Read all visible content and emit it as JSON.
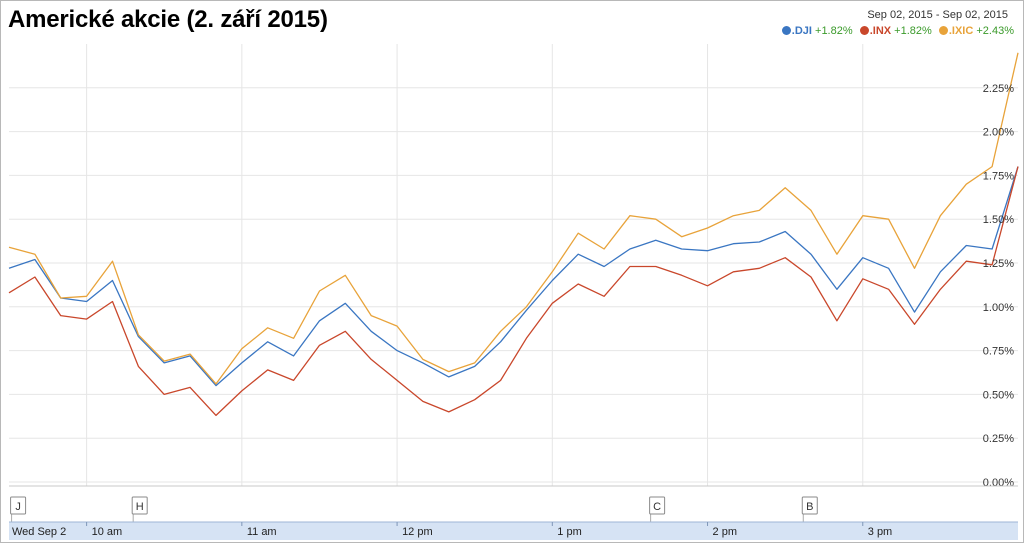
{
  "title": "Americké akcie (2. září 2015)",
  "date_range": "Sep 02, 2015  -  Sep 02, 2015",
  "legend": [
    {
      "name": ".DJI",
      "change": "+1.82%",
      "color": "#3a76c2"
    },
    {
      "name": ".INX",
      "change": "+1.82%",
      "color": "#c9472b"
    },
    {
      "name": ".IXIC",
      "change": "+2.43%",
      "color": "#e8a33a"
    }
  ],
  "flags": [
    "J",
    "H",
    "C",
    "B"
  ],
  "x_axis_labels": [
    "Wed Sep 2",
    "10 am",
    "11 am",
    "12 pm",
    "1 pm",
    "2 pm",
    "3 pm"
  ],
  "chart_data": {
    "type": "line",
    "title": "Americké akcie (2. září 2015)",
    "xlabel": "",
    "ylabel": "",
    "y_unit": "%",
    "ylim": [
      0,
      2.5
    ],
    "y_ticks": [
      0.0,
      0.25,
      0.5,
      0.75,
      1.0,
      1.25,
      1.5,
      1.75,
      2.0,
      2.25
    ],
    "y_tick_labels": [
      "0.00%",
      "0.25%",
      "0.50%",
      "0.75%",
      "1.00%",
      "1.25%",
      "1.50%",
      "1.75%",
      "2.00%",
      "2.25%"
    ],
    "x_ticks": [
      "9:30",
      "10:00",
      "11:00",
      "12:00",
      "13:00",
      "14:00",
      "15:00"
    ],
    "x_tick_labels": [
      "Wed Sep 2",
      "10 am",
      "11 am",
      "12 pm",
      "1 pm",
      "2 pm",
      "3 pm"
    ],
    "xlim": [
      "9:30",
      "16:00"
    ],
    "grid": true,
    "legend_position": "top-right",
    "flags": [
      {
        "label": "J",
        "time": "9:31"
      },
      {
        "label": "H",
        "time": "10:18"
      },
      {
        "label": "C",
        "time": "13:38"
      },
      {
        "label": "B",
        "time": "14:37"
      }
    ],
    "x": [
      "9:30",
      "9:40",
      "9:50",
      "10:00",
      "10:10",
      "10:20",
      "10:30",
      "10:40",
      "10:50",
      "11:00",
      "11:10",
      "11:20",
      "11:30",
      "11:40",
      "11:50",
      "12:00",
      "12:10",
      "12:20",
      "12:30",
      "12:40",
      "12:50",
      "13:00",
      "13:10",
      "13:20",
      "13:30",
      "13:40",
      "13:50",
      "14:00",
      "14:10",
      "14:20",
      "14:30",
      "14:40",
      "14:50",
      "15:00",
      "15:10",
      "15:20",
      "15:30",
      "15:40",
      "15:50",
      "16:00"
    ],
    "series": [
      {
        "name": ".DJI",
        "color": "#3a76c2",
        "values": [
          1.22,
          1.27,
          1.05,
          1.03,
          1.15,
          0.83,
          0.68,
          0.72,
          0.55,
          0.68,
          0.8,
          0.72,
          0.92,
          1.02,
          0.86,
          0.75,
          0.68,
          0.6,
          0.66,
          0.8,
          0.98,
          1.15,
          1.3,
          1.23,
          1.33,
          1.38,
          1.33,
          1.32,
          1.36,
          1.37,
          1.43,
          1.3,
          1.1,
          1.28,
          1.22,
          0.97,
          1.2,
          1.35,
          1.33,
          1.8
        ]
      },
      {
        "name": ".INX",
        "color": "#c9472b",
        "values": [
          1.08,
          1.17,
          0.95,
          0.93,
          1.03,
          0.66,
          0.5,
          0.54,
          0.38,
          0.52,
          0.64,
          0.58,
          0.78,
          0.86,
          0.7,
          0.58,
          0.46,
          0.4,
          0.47,
          0.58,
          0.82,
          1.02,
          1.13,
          1.06,
          1.23,
          1.23,
          1.18,
          1.12,
          1.2,
          1.22,
          1.28,
          1.17,
          0.92,
          1.16,
          1.1,
          0.9,
          1.1,
          1.26,
          1.24,
          1.8
        ]
      },
      {
        "name": ".IXIC",
        "color": "#e8a33a",
        "values": [
          1.34,
          1.3,
          1.05,
          1.06,
          1.26,
          0.84,
          0.69,
          0.73,
          0.56,
          0.76,
          0.88,
          0.82,
          1.09,
          1.18,
          0.95,
          0.89,
          0.7,
          0.63,
          0.68,
          0.86,
          1.0,
          1.2,
          1.42,
          1.33,
          1.52,
          1.5,
          1.4,
          1.45,
          1.52,
          1.55,
          1.68,
          1.55,
          1.3,
          1.52,
          1.5,
          1.22,
          1.52,
          1.7,
          1.8,
          2.45
        ]
      }
    ]
  }
}
